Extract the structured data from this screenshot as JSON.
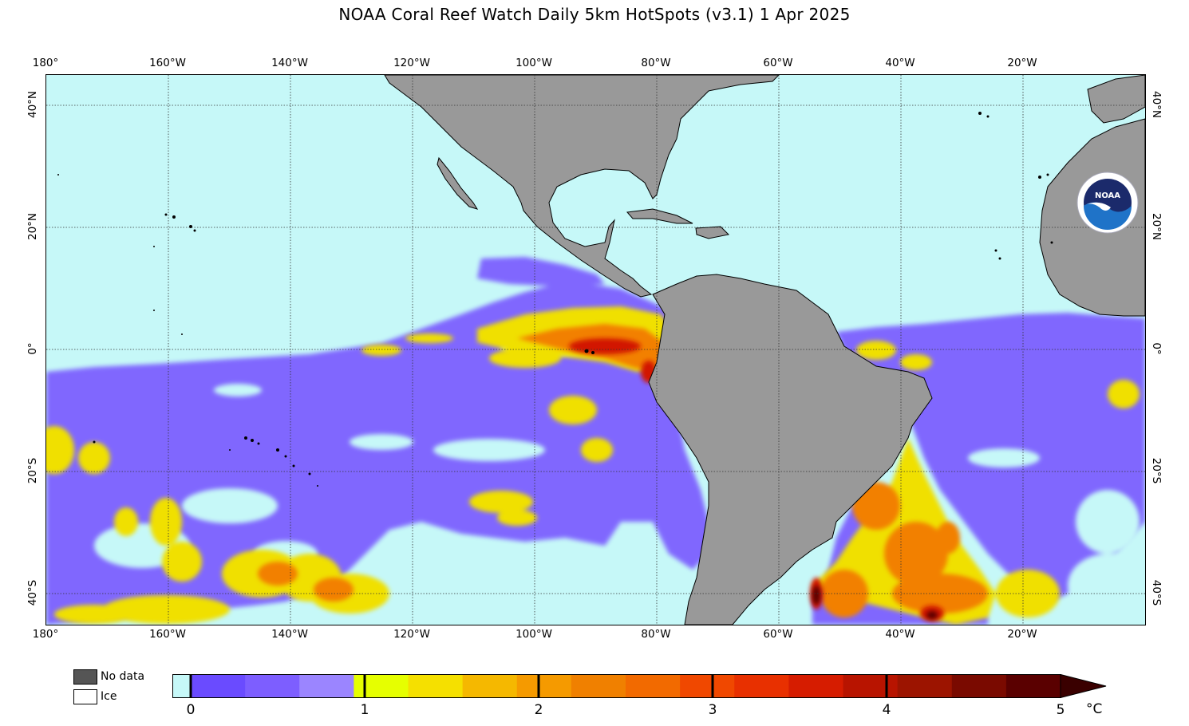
{
  "title": "NOAA Coral Reef Watch Daily 5km HotSpots  (v3.1)   1 Apr 2025",
  "map": {
    "lon_labels": [
      "180°",
      "160°W",
      "140°W",
      "120°W",
      "100°W",
      "80°W",
      "60°W",
      "40°W",
      "20°W"
    ],
    "lat_labels_left": [
      "40°N",
      "20°N",
      "0°",
      "20°S",
      "40°S"
    ],
    "lat_labels_right": [
      "40°N",
      "20°N",
      "0°",
      "20°S",
      "40°S"
    ],
    "ocean_color": "#c6f8f8",
    "land_color": "#999999",
    "logo_icon": "noaa-logo"
  },
  "legend": {
    "no_data_label": "No data",
    "ice_label": "Ice",
    "no_data_color": "#555555",
    "ice_color": "#ffffff"
  },
  "colorbar": {
    "ticks": [
      "0",
      "1",
      "2",
      "3",
      "4",
      "5"
    ],
    "unit": "°C",
    "colors": [
      "#c6f8f8",
      "#6a4bff",
      "#7d5eff",
      "#9b85ff",
      "#e6ff00",
      "#f5e000",
      "#f5b800",
      "#f59a00",
      "#f08000",
      "#f26a00",
      "#f04800",
      "#e83000",
      "#d61c00",
      "#b81400",
      "#9c1400",
      "#7a0a00",
      "#5a0000"
    ]
  }
}
